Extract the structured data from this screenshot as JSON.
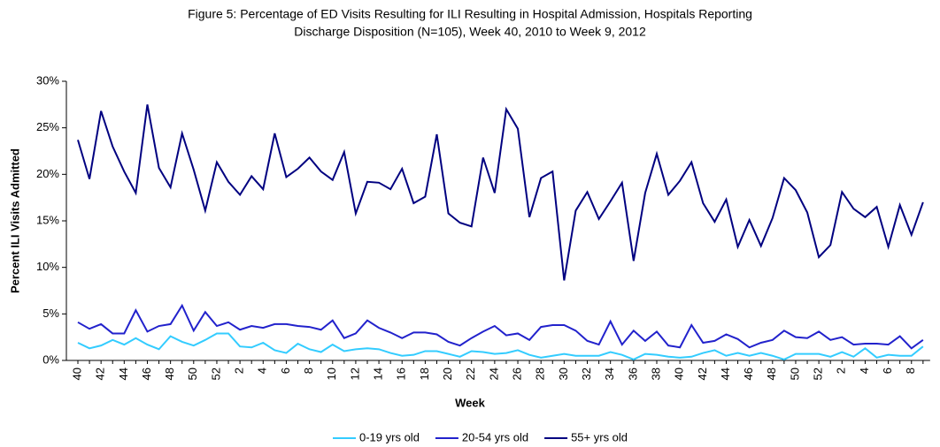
{
  "chart_data": {
    "type": "line",
    "title": [
      "Figure 5: Percentage of ED Visits Resulting for ILI Resulting in Hospital Admission, Hospitals Reporting",
      "Discharge Disposition (N=105), Week 40, 2010 to Week 9, 2012"
    ],
    "x_label": "Week",
    "y_label": "Percent ILI Visits Admitted",
    "categories": [
      40,
      null,
      42,
      null,
      44,
      null,
      46,
      null,
      48,
      null,
      50,
      null,
      52,
      null,
      2,
      null,
      4,
      null,
      6,
      null,
      8,
      null,
      10,
      null,
      12,
      null,
      14,
      null,
      16,
      null,
      18,
      null,
      20,
      null,
      22,
      null,
      24,
      null,
      26,
      null,
      28,
      null,
      30,
      null,
      32,
      null,
      34,
      null,
      36,
      null,
      38,
      null,
      40,
      null,
      42,
      null,
      44,
      null,
      46,
      null,
      48,
      null,
      50,
      null,
      52,
      null,
      2,
      null,
      4,
      null,
      6,
      null,
      8,
      null
    ],
    "ylim": [
      0,
      30
    ],
    "yticks": [
      {
        "value": 0,
        "label": "0%"
      },
      {
        "value": 5,
        "label": "5%"
      },
      {
        "value": 10,
        "label": "10%"
      },
      {
        "value": 15,
        "label": "15%"
      },
      {
        "value": 20,
        "label": "20%"
      },
      {
        "value": 25,
        "label": "25%"
      },
      {
        "value": 30,
        "label": "30%"
      }
    ],
    "legend": "bottom",
    "series": [
      {
        "name": "0-19 yrs old",
        "color": "#33ccff",
        "values": [
          1.9,
          1.3,
          1.6,
          2.2,
          1.7,
          2.4,
          1.7,
          1.2,
          2.6,
          2.0,
          1.6,
          2.2,
          2.9,
          2.9,
          1.5,
          1.4,
          1.9,
          1.1,
          0.8,
          1.8,
          1.2,
          0.9,
          1.7,
          1.0,
          1.2,
          1.3,
          1.2,
          0.8,
          0.5,
          0.6,
          1.0,
          1.0,
          0.7,
          0.4,
          1.0,
          0.9,
          0.7,
          0.8,
          1.1,
          0.6,
          0.3,
          0.5,
          0.7,
          0.5,
          0.5,
          0.5,
          0.9,
          0.6,
          0.1,
          0.7,
          0.6,
          0.4,
          0.3,
          0.4,
          0.8,
          1.1,
          0.5,
          0.8,
          0.5,
          0.8,
          0.5,
          0.1,
          0.7,
          0.7,
          0.7,
          0.4,
          0.9,
          0.4,
          1.3,
          0.3,
          0.6,
          0.5,
          0.5,
          1.5
        ]
      },
      {
        "name": "20-54 yrs old",
        "color": "#2222cc",
        "values": [
          4.1,
          3.4,
          3.9,
          2.9,
          2.9,
          5.4,
          3.1,
          3.7,
          3.9,
          5.9,
          3.2,
          5.2,
          3.7,
          4.1,
          3.3,
          3.7,
          3.5,
          3.9,
          3.9,
          3.7,
          3.6,
          3.3,
          4.3,
          2.4,
          2.9,
          4.3,
          3.5,
          3.0,
          2.4,
          3.0,
          3.0,
          2.8,
          2.0,
          1.6,
          2.4,
          3.1,
          3.7,
          2.7,
          2.9,
          2.2,
          3.6,
          3.8,
          3.8,
          3.2,
          2.1,
          1.7,
          4.2,
          1.7,
          3.2,
          2.1,
          3.1,
          1.6,
          1.4,
          3.8,
          1.9,
          2.1,
          2.8,
          2.3,
          1.4,
          1.9,
          2.2,
          3.2,
          2.5,
          2.4,
          3.1,
          2.2,
          2.5,
          1.7,
          1.8,
          1.8,
          1.7,
          2.6,
          1.3,
          2.2
        ]
      },
      {
        "name": "55+ yrs old",
        "color": "#000080",
        "values": [
          23.7,
          19.5,
          26.8,
          23.0,
          20.3,
          18.0,
          27.5,
          20.7,
          18.6,
          24.4,
          20.5,
          16.1,
          21.3,
          19.2,
          17.8,
          19.8,
          18.4,
          24.4,
          19.7,
          20.6,
          21.8,
          20.3,
          19.4,
          22.4,
          15.8,
          19.2,
          19.1,
          18.4,
          20.6,
          16.9,
          17.6,
          24.3,
          15.8,
          14.8,
          14.4,
          21.8,
          18.0,
          27.0,
          24.9,
          15.4,
          19.6,
          20.3,
          8.6,
          16.1,
          18.1,
          15.2,
          17.1,
          19.1,
          10.7,
          18.0,
          22.2,
          17.8,
          19.3,
          21.3,
          16.9,
          14.9,
          17.3,
          12.2,
          15.1,
          12.3,
          15.3,
          19.6,
          18.3,
          15.9,
          11.1,
          12.4,
          18.1,
          16.3,
          15.4,
          16.5,
          12.2,
          16.7,
          13.5,
          17.0
        ]
      }
    ]
  }
}
